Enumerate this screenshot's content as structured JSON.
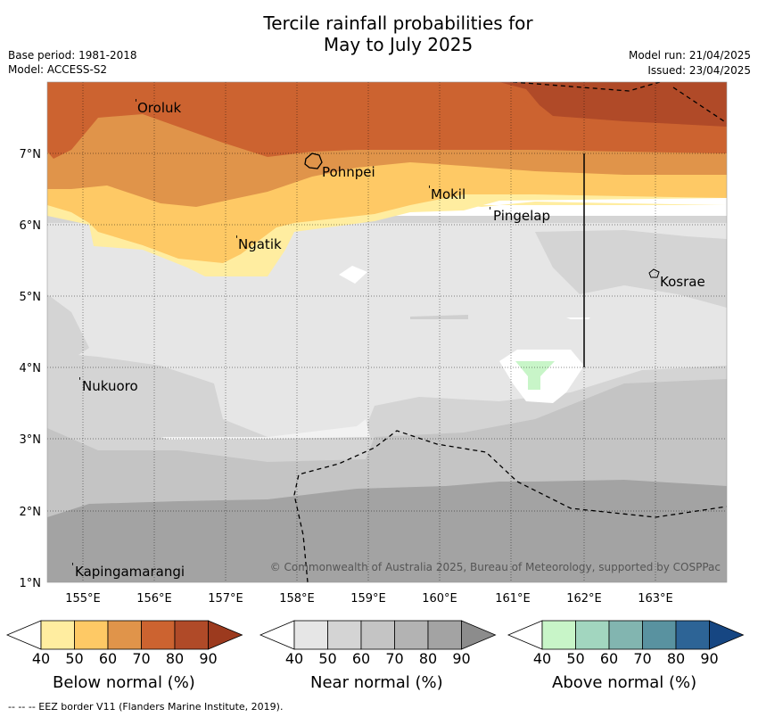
{
  "header": {
    "title_line1": "Tercile rainfall probabilities for",
    "title_line2": "May to July 2025",
    "base_period": "Base period: 1981-2018",
    "model": "Model: ACCESS-S2",
    "model_run": "Model run: 21/04/2025",
    "issued": "Issued: 23/04/2025"
  },
  "map": {
    "lon_ticks": [
      "155°E",
      "156°E",
      "157°E",
      "158°E",
      "159°E",
      "160°E",
      "161°E",
      "162°E",
      "163°E"
    ],
    "lat_ticks": [
      "7°N",
      "6°N",
      "5°N",
      "4°N",
      "3°N",
      "2°N",
      "1°N"
    ],
    "places": [
      {
        "name": "Oroluk"
      },
      {
        "name": "Pohnpei"
      },
      {
        "name": "Mokil"
      },
      {
        "name": "Pingelap"
      },
      {
        "name": "Ngatik"
      },
      {
        "name": "Kosrae"
      },
      {
        "name": "Nukuoro"
      },
      {
        "name": "Kapingamarangi"
      }
    ],
    "copyright": "© Commonwealth of Australia 2025, Bureau of Meteorology, supported by COSPPac"
  },
  "colorbars": [
    {
      "title": "Below normal (%)",
      "ticks": [
        "40",
        "50",
        "60",
        "70",
        "80",
        "90"
      ],
      "colors": [
        "#ffffff",
        "#ffeda0",
        "#fec965",
        "#e0944a",
        "#cc6330",
        "#b04a28",
        "#9c3a1e"
      ]
    },
    {
      "title": "Near normal (%)",
      "ticks": [
        "40",
        "50",
        "60",
        "70",
        "80",
        "90"
      ],
      "colors": [
        "#ffffff",
        "#e6e6e6",
        "#d4d4d4",
        "#c4c4c4",
        "#b3b3b3",
        "#a3a3a3",
        "#8c8c8c"
      ]
    },
    {
      "title": "Above normal (%)",
      "ticks": [
        "40",
        "50",
        "60",
        "70",
        "80",
        "90"
      ],
      "colors": [
        "#ffffff",
        "#c8f5c8",
        "#a2d6bf",
        "#82b5b0",
        "#5992a0",
        "#2d6496",
        "#164682"
      ]
    }
  ],
  "footer": {
    "eez_note": "--  --  -- EEZ border V11 (Flanders Marine Institute, 2019)."
  }
}
